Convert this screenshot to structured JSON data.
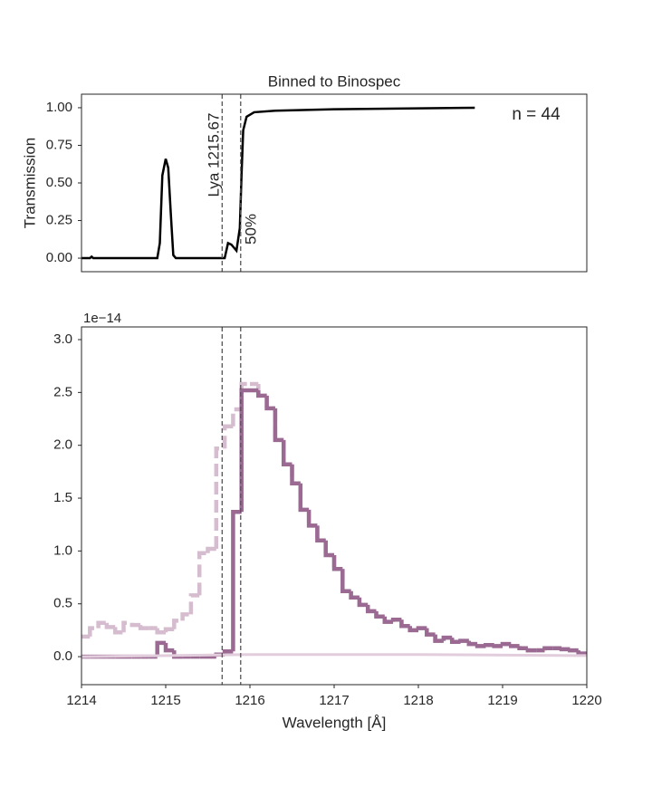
{
  "chart_data": [
    {
      "type": "line",
      "title": "Binned to Binospec",
      "ylabel": "Transmission",
      "annotations": [
        "Lya 1215.67",
        "50%",
        "n = 44"
      ],
      "vlines": [
        1215.67,
        1215.89
      ],
      "xlim": [
        1214,
        1220
      ],
      "ylim": [
        -0.09,
        1.09
      ],
      "yticks": [
        {
          "value": 0,
          "label": "0.00"
        },
        0.25,
        {
          "value": 0.5,
          "label": "0.50"
        },
        0.75,
        {
          "value": 1,
          "label": "1.00"
        }
      ],
      "series": [
        {
          "color": "#000000",
          "x": [
            1214.0,
            1214.1,
            1214.12,
            1214.14,
            1214.9,
            1214.93,
            1214.96,
            1215.0,
            1215.03,
            1215.06,
            1215.09,
            1215.12,
            1215.7,
            1215.74,
            1215.78,
            1215.84,
            1215.88,
            1215.9,
            1215.92,
            1215.96,
            1216.05,
            1216.3,
            1217.0,
            1218.67
          ],
          "values": [
            0,
            0,
            0.01,
            0,
            0,
            0.1,
            0.55,
            0.66,
            0.6,
            0.3,
            0.02,
            0,
            0,
            0.1,
            0.09,
            0.05,
            0.2,
            0.55,
            0.85,
            0.94,
            0.97,
            0.98,
            0.99,
            1.0
          ]
        }
      ]
    },
    {
      "type": "step",
      "xlabel": "Wavelength [Å]",
      "y_offset_label": "1e−14",
      "vlines": [
        1215.67,
        1215.89
      ],
      "xlim": [
        1214,
        1220
      ],
      "ylim": [
        -0.265,
        3.12
      ],
      "xticks": [
        1214,
        1215,
        1216,
        1217,
        1218,
        1219,
        1220
      ],
      "yticks": [
        {
          "value": 0,
          "label": "0.0"
        },
        0.5,
        {
          "value": 1,
          "label": "1.0"
        },
        1.5,
        {
          "value": 2,
          "label": "2.0"
        },
        2.5,
        {
          "value": 3,
          "label": "3.0"
        }
      ],
      "x": [
        1214.0,
        1214.1,
        1214.2,
        1214.3,
        1214.4,
        1214.5,
        1214.6,
        1214.7,
        1214.8,
        1214.9,
        1215.0,
        1215.1,
        1215.2,
        1215.3,
        1215.4,
        1215.5,
        1215.6,
        1215.7,
        1215.8,
        1215.9,
        1216.0,
        1216.1,
        1216.2,
        1216.3,
        1216.4,
        1216.5,
        1216.6,
        1216.7,
        1216.8,
        1216.9,
        1217.0,
        1217.1,
        1217.2,
        1217.3,
        1217.4,
        1217.5,
        1217.6,
        1217.7,
        1217.8,
        1217.9,
        1218.0,
        1218.1,
        1218.2,
        1218.3,
        1218.4,
        1218.5,
        1218.6,
        1218.7,
        1218.8,
        1218.9,
        1219.0,
        1219.1,
        1219.2,
        1219.3,
        1219.4,
        1219.5,
        1219.6,
        1219.7,
        1219.8,
        1219.9
      ],
      "series": [
        {
          "color": "#d6bccf",
          "dashed": true,
          "values": [
            0.19,
            0.27,
            0.32,
            0.28,
            0.23,
            0.32,
            0.3,
            0.27,
            0.27,
            0.23,
            0.26,
            0.34,
            0.4,
            0.58,
            0.98,
            1.02,
            1.97,
            2.18,
            2.34,
            2.58,
            2.58,
            2.47,
            2.35,
            2.05,
            1.82,
            1.64,
            1.39,
            1.24,
            1.1,
            0.96,
            0.83,
            0.62,
            0.56,
            0.49,
            0.43,
            0.38,
            0.33,
            0.35,
            0.29,
            0.25,
            0.27,
            0.21,
            0.15,
            0.18,
            0.14,
            0.15,
            0.12,
            0.1,
            0.11,
            0.1,
            0.12,
            0.1,
            0.08,
            0.06,
            0.06,
            0.08,
            0.08,
            0.07,
            0.06,
            0.03
          ]
        },
        {
          "color": "#9a6a93",
          "values": [
            0,
            0,
            0,
            0,
            0,
            0,
            0,
            0,
            0,
            0.13,
            0.06,
            0,
            0,
            0,
            0,
            0,
            0.02,
            0.05,
            1.37,
            2.52,
            2.52,
            2.47,
            2.35,
            2.05,
            1.82,
            1.64,
            1.39,
            1.24,
            1.1,
            0.96,
            0.83,
            0.62,
            0.56,
            0.49,
            0.43,
            0.38,
            0.33,
            0.35,
            0.29,
            0.25,
            0.27,
            0.21,
            0.15,
            0.18,
            0.14,
            0.15,
            0.12,
            0.1,
            0.11,
            0.1,
            0.12,
            0.1,
            0.08,
            0.06,
            0.06,
            0.08,
            0.08,
            0.07,
            0.06,
            0.03
          ]
        },
        {
          "color": "#e2cddc",
          "x": [
            1214,
            1216,
            1218,
            1220
          ],
          "values": [
            0.0,
            0.02,
            0.02,
            0.01
          ]
        }
      ]
    }
  ]
}
